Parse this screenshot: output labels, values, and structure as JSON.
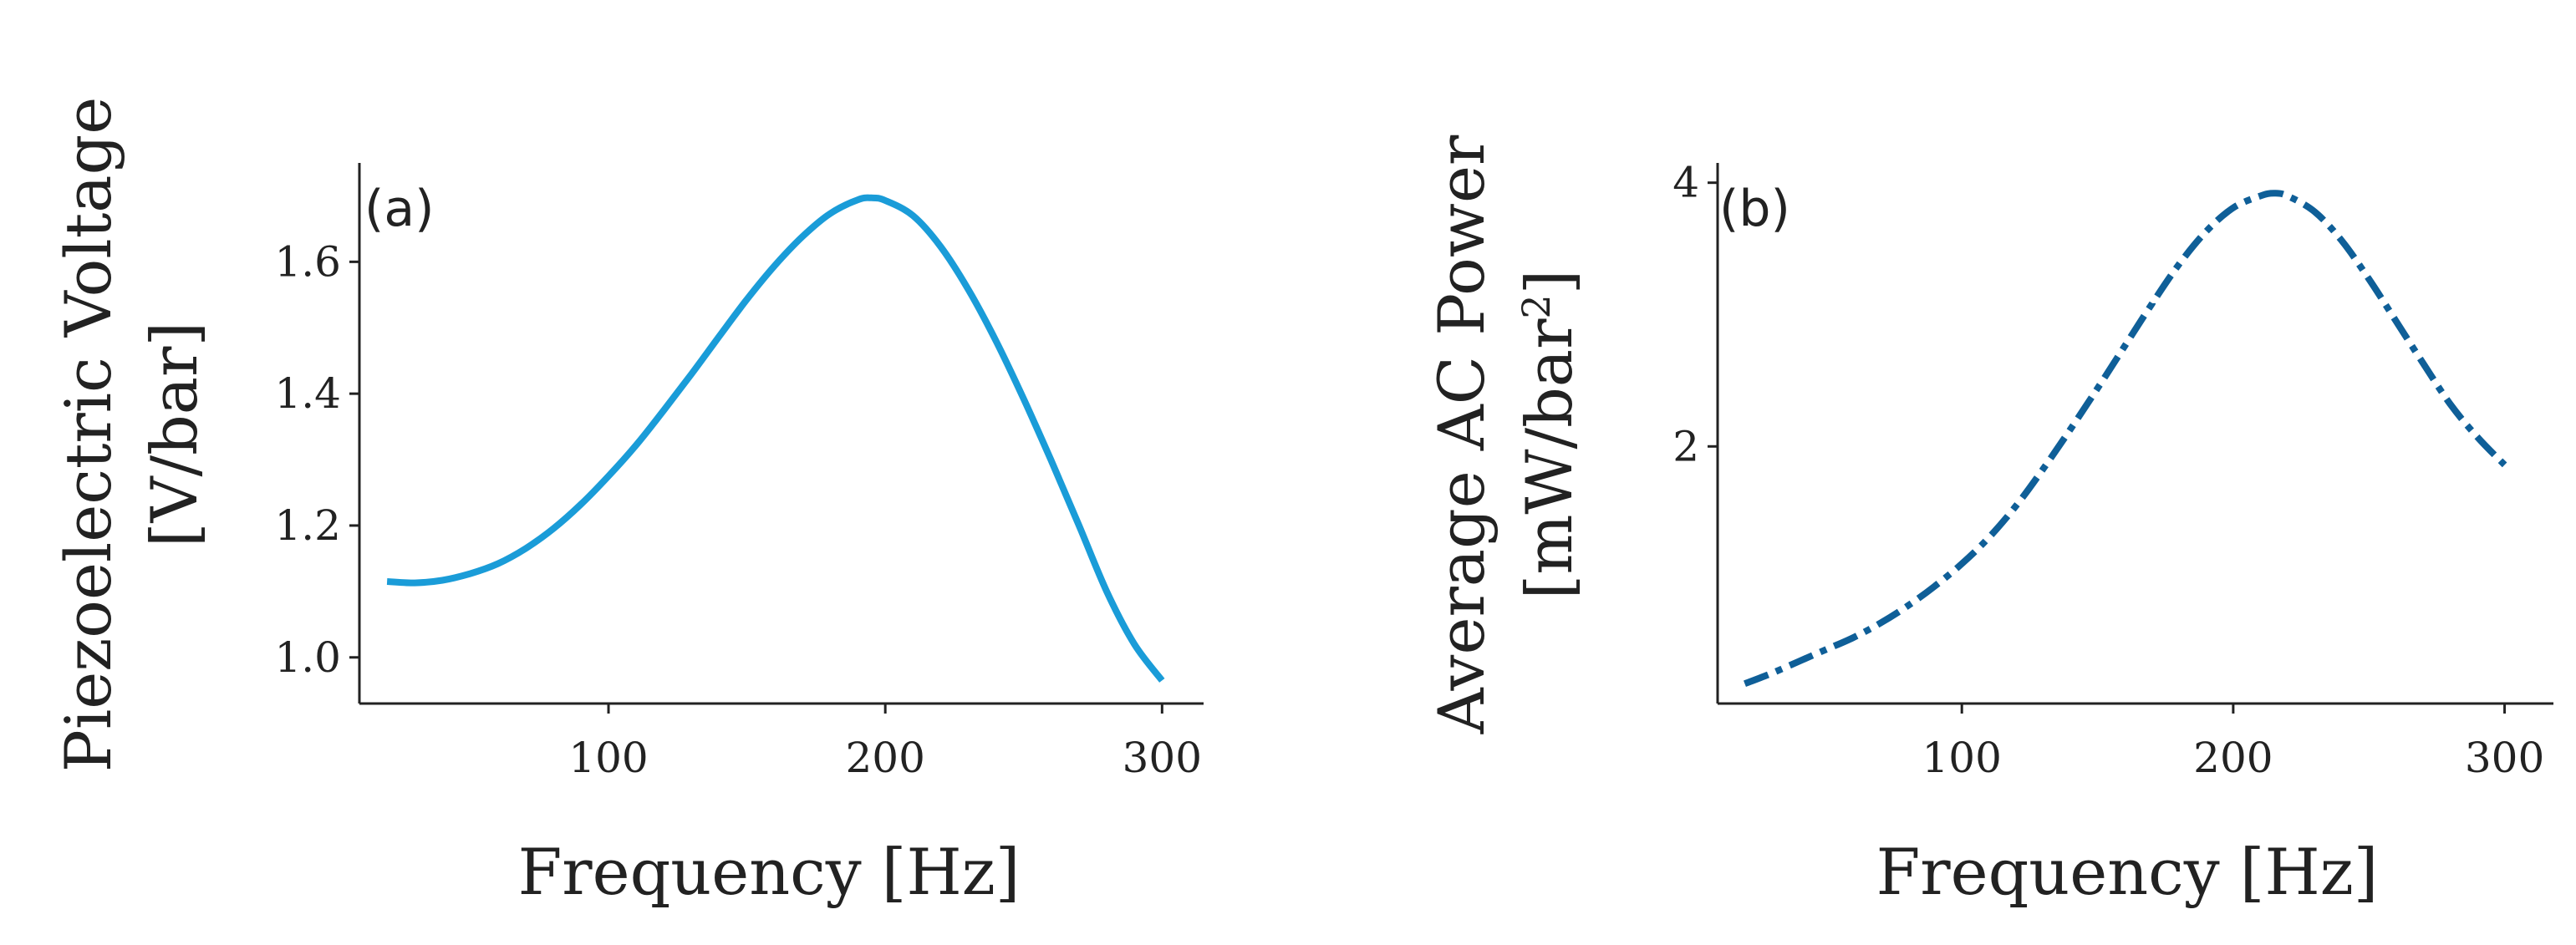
{
  "chart_data": [
    {
      "type": "line",
      "panel_label": "(a)",
      "xlabel": "Frequency [Hz]",
      "ylabel_line1": "Piezoelectric Voltage",
      "ylabel_line2": "[V/bar]",
      "xlim": [
        10,
        315
      ],
      "ylim": [
        0.93,
        1.75
      ],
      "x_ticks": [
        100,
        200,
        300
      ],
      "x_tick_labels": [
        "100",
        "200",
        "300"
      ],
      "y_ticks": [
        1.0,
        1.2,
        1.4,
        1.6
      ],
      "y_tick_labels": [
        "1.0",
        "1.2",
        "1.4",
        "1.6"
      ],
      "grid": false,
      "series": [
        {
          "name": "Piezoelectric Voltage",
          "color": "#1a9cd8",
          "style": "solid",
          "x": [
            20,
            30,
            40,
            50,
            60,
            70,
            80,
            90,
            100,
            110,
            120,
            130,
            140,
            150,
            160,
            170,
            180,
            190,
            195,
            200,
            210,
            220,
            230,
            240,
            250,
            260,
            270,
            280,
            290,
            300
          ],
          "y": [
            1.115,
            1.113,
            1.117,
            1.127,
            1.142,
            1.165,
            1.195,
            1.232,
            1.275,
            1.322,
            1.375,
            1.43,
            1.487,
            1.543,
            1.594,
            1.638,
            1.673,
            1.694,
            1.697,
            1.693,
            1.67,
            1.623,
            1.558,
            1.48,
            1.392,
            1.298,
            1.2,
            1.1,
            1.02,
            0.965
          ]
        }
      ]
    },
    {
      "type": "line",
      "panel_label": "(b)",
      "xlabel": "Frequency [Hz]",
      "ylabel_line1": "Average AC Power",
      "ylabel_line2_pre": "[mW/bar",
      "ylabel_line2_sup": "2",
      "ylabel_line2_post": "]",
      "xlim": [
        10,
        318
      ],
      "ylim": [
        0.05,
        4.15
      ],
      "x_ticks": [
        100,
        200,
        300
      ],
      "x_tick_labels": [
        "100",
        "200",
        "300"
      ],
      "y_ticks": [
        2,
        4
      ],
      "y_tick_labels": [
        "2",
        "4"
      ],
      "grid": false,
      "series": [
        {
          "name": "Average AC Power",
          "color": "#0f5f98",
          "style": "dashdot",
          "x": [
            20,
            30,
            40,
            50,
            60,
            70,
            80,
            90,
            100,
            110,
            120,
            130,
            140,
            150,
            160,
            170,
            180,
            190,
            200,
            210,
            215,
            220,
            230,
            240,
            250,
            260,
            270,
            280,
            290,
            300
          ],
          "y": [
            0.2,
            0.28,
            0.37,
            0.46,
            0.55,
            0.66,
            0.79,
            0.94,
            1.11,
            1.31,
            1.55,
            1.83,
            2.13,
            2.44,
            2.76,
            3.08,
            3.38,
            3.63,
            3.81,
            3.9,
            3.92,
            3.9,
            3.78,
            3.56,
            3.27,
            2.95,
            2.63,
            2.32,
            2.07,
            1.86
          ]
        }
      ]
    }
  ]
}
